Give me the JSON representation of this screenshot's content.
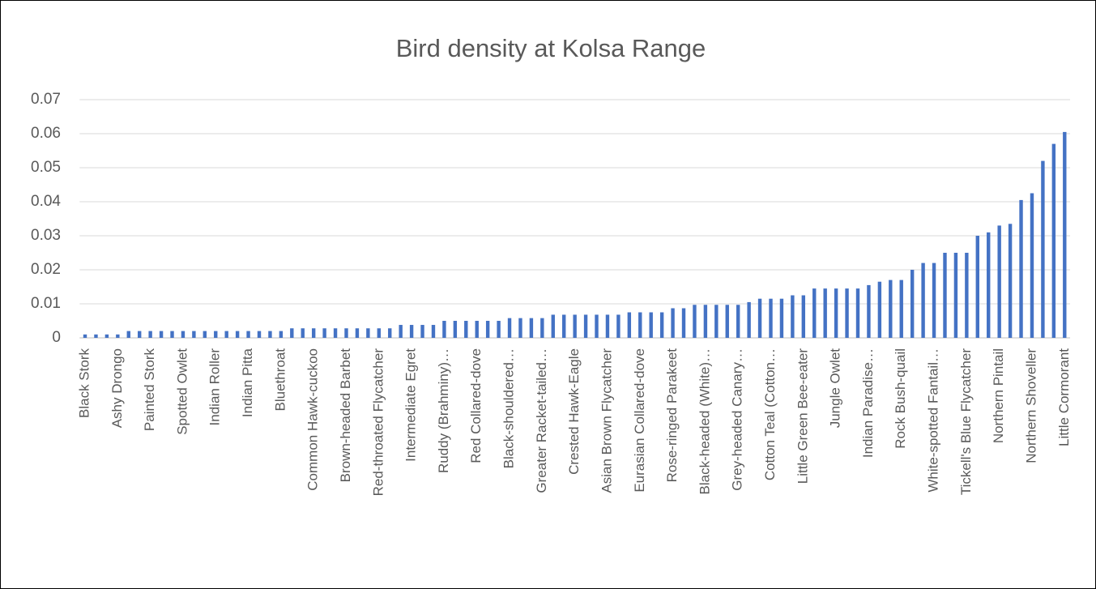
{
  "chart_data": {
    "type": "bar",
    "title": "Bird density at Kolsa Range",
    "categories": [
      "Black Stork",
      null,
      null,
      "Ashy Drongo",
      null,
      null,
      "Painted Stork",
      null,
      null,
      "Spotted Owlet",
      null,
      null,
      "Indian Roller",
      null,
      null,
      "Indian Pitta",
      null,
      null,
      "Bluethroat",
      null,
      null,
      "Common Hawk-cuckoo",
      null,
      null,
      "Brown-headed Barbet",
      null,
      null,
      "Red-throated Flycatcher",
      null,
      null,
      "Intermediate Egret",
      null,
      null,
      "Ruddy (Brahminy)…",
      null,
      null,
      "Red Collared-dove",
      null,
      null,
      "Black-shouldered…",
      null,
      null,
      "Greater Racket-tailed…",
      null,
      null,
      "Crested Hawk-Eagle",
      null,
      null,
      "Asian Brown Flycatcher",
      null,
      null,
      "Eurasian Collared-dove",
      null,
      null,
      "Rose-ringed Parakeet",
      null,
      null,
      "Black-headed (White)…",
      null,
      null,
      "Grey-headed Canary…",
      null,
      null,
      "Cotton Teal (Cotton…",
      null,
      null,
      "Little Green Bee-eater",
      null,
      null,
      "Jungle Owlet",
      null,
      null,
      "Indian Paradise…",
      null,
      null,
      "Rock Bush-quail",
      null,
      null,
      "White-spotted Fantail…",
      null,
      null,
      "Tickell's Blue Flycatcher",
      null,
      null,
      "Northern Pintail",
      null,
      null,
      "Northern Shoveller",
      null,
      null,
      "Little Cormorant"
    ],
    "values": [
      0.001,
      0.001,
      0.001,
      0.001,
      0.002,
      0.002,
      0.002,
      0.002,
      0.002,
      0.002,
      0.002,
      0.002,
      0.002,
      0.002,
      0.002,
      0.002,
      0.002,
      0.002,
      0.002,
      0.0028,
      0.0028,
      0.0028,
      0.0028,
      0.0028,
      0.0028,
      0.0028,
      0.0028,
      0.0028,
      0.0028,
      0.0038,
      0.0038,
      0.0038,
      0.0038,
      0.005,
      0.005,
      0.005,
      0.005,
      0.005,
      0.005,
      0.0058,
      0.0058,
      0.0058,
      0.0058,
      0.0068,
      0.0068,
      0.0068,
      0.0068,
      0.0068,
      0.0068,
      0.0068,
      0.0075,
      0.0075,
      0.0075,
      0.0075,
      0.0087,
      0.0087,
      0.0097,
      0.0097,
      0.0097,
      0.0097,
      0.0097,
      0.0105,
      0.0115,
      0.0115,
      0.0115,
      0.0125,
      0.0125,
      0.0145,
      0.0145,
      0.0145,
      0.0145,
      0.0145,
      0.0155,
      0.0165,
      0.017,
      0.017,
      0.02,
      0.022,
      0.022,
      0.025,
      0.025,
      0.025,
      0.03,
      0.031,
      0.033,
      0.0335,
      0.0405,
      0.0425,
      0.052,
      0.057,
      0.0605
    ],
    "color": "#4472c4",
    "ylim": [
      0,
      0.07
    ],
    "yticks": [
      0,
      0.01,
      0.02,
      0.03,
      0.04,
      0.05,
      0.06,
      0.07
    ],
    "grid": true
  }
}
